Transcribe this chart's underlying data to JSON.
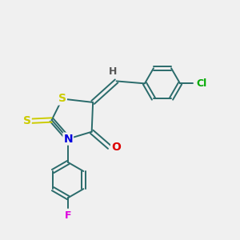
{
  "bg_color": "#f0f0f0",
  "bond_color": "#2a6b6b",
  "atom_colors": {
    "S": "#cccc00",
    "N": "#0000dd",
    "O": "#dd0000",
    "Cl": "#00aa00",
    "F": "#dd00dd",
    "H": "#555555",
    "C": "#2a6b6b"
  },
  "figsize": [
    3.0,
    3.0
  ],
  "dpi": 100
}
